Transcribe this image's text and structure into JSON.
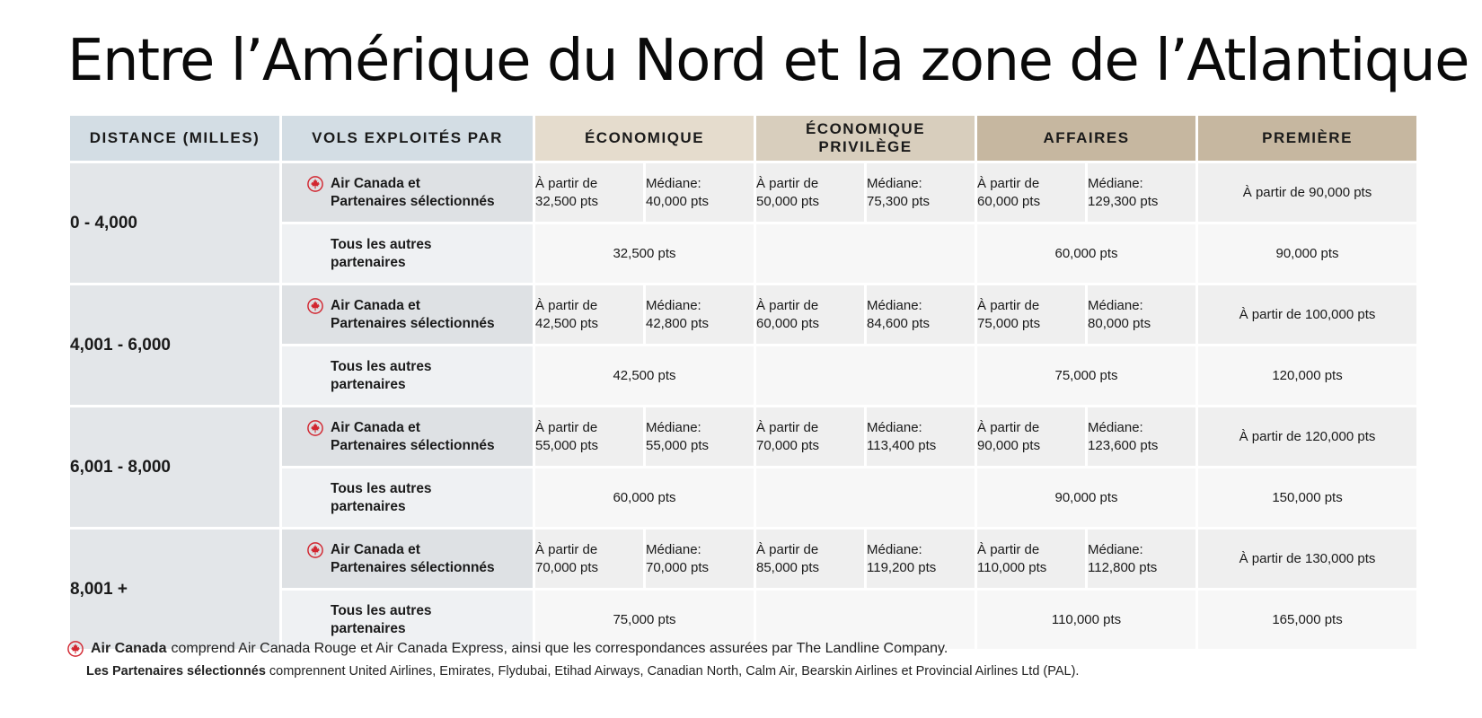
{
  "title": "Entre l’Amérique du Nord et la zone de l’Atlantique",
  "headers": {
    "distance": "Distance (milles)",
    "operated_by": "Vols exploités par",
    "economy": "Économique",
    "premium_economy": "Économique Privilège",
    "business": "Affaires",
    "first": "Première"
  },
  "labels": {
    "ac_line1": "Air Canada et",
    "ac_line2": "Partenaires sélectionnés",
    "other_line1": "Tous les autres",
    "other_line2": "partenaires",
    "from": "À partir de",
    "median": "Médiane:"
  },
  "icons": {
    "leaf": "maple-leaf-icon",
    "leaf_color": "#d22630"
  },
  "rows": [
    {
      "distance": "0 - 4,000",
      "ac": {
        "eco_from": "32,500 pts",
        "eco_median": "40,000 pts",
        "ecop_from": "50,000 pts",
        "ecop_median": "75,300 pts",
        "aff_from": "60,000 pts",
        "aff_median": "129,300 pts",
        "first": "À partir de 90,000 pts"
      },
      "other": {
        "eco": "32,500 pts",
        "ecop": "",
        "aff": "60,000 pts",
        "first": "90,000 pts"
      }
    },
    {
      "distance": "4,001 - 6,000",
      "ac": {
        "eco_from": "42,500 pts",
        "eco_median": "42,800 pts",
        "ecop_from": "60,000 pts",
        "ecop_median": "84,600 pts",
        "aff_from": "75,000 pts",
        "aff_median": "80,000 pts",
        "first": "À partir de 100,000 pts"
      },
      "other": {
        "eco": "42,500 pts",
        "ecop": "",
        "aff": "75,000 pts",
        "first": "120,000 pts"
      }
    },
    {
      "distance": "6,001 - 8,000",
      "ac": {
        "eco_from": "55,000 pts",
        "eco_median": "55,000 pts",
        "ecop_from": "70,000 pts",
        "ecop_median": "113,400 pts",
        "aff_from": "90,000 pts",
        "aff_median": "123,600 pts",
        "first": "À partir de 120,000 pts"
      },
      "other": {
        "eco": "60,000 pts",
        "ecop": "",
        "aff": "90,000 pts",
        "first": "150,000 pts"
      }
    },
    {
      "distance": "8,001 +",
      "ac": {
        "eco_from": "70,000 pts",
        "eco_median": "70,000 pts",
        "ecop_from": "85,000 pts",
        "ecop_median": "119,200 pts",
        "aff_from": "110,000 pts",
        "aff_median": "112,800 pts",
        "first": "À partir de 130,000 pts"
      },
      "other": {
        "eco": "75,000 pts",
        "ecop": "",
        "aff": "110,000 pts",
        "first": "165,000 pts"
      }
    }
  ],
  "footnotes": {
    "note1_bold": "Air Canada",
    "note1_text": "comprend Air Canada Rouge et Air Canada Express, ainsi que les correspondances assurées par The Landline Company.",
    "note2_bold": "Les Partenaires sélectionnés",
    "note2_text": "comprennent United Airlines, Emirates, Flydubai, Etihad Airways, Canadian North, Calm Air, Bearskin Airlines et Provincial Airlines Ltd (PAL)."
  }
}
